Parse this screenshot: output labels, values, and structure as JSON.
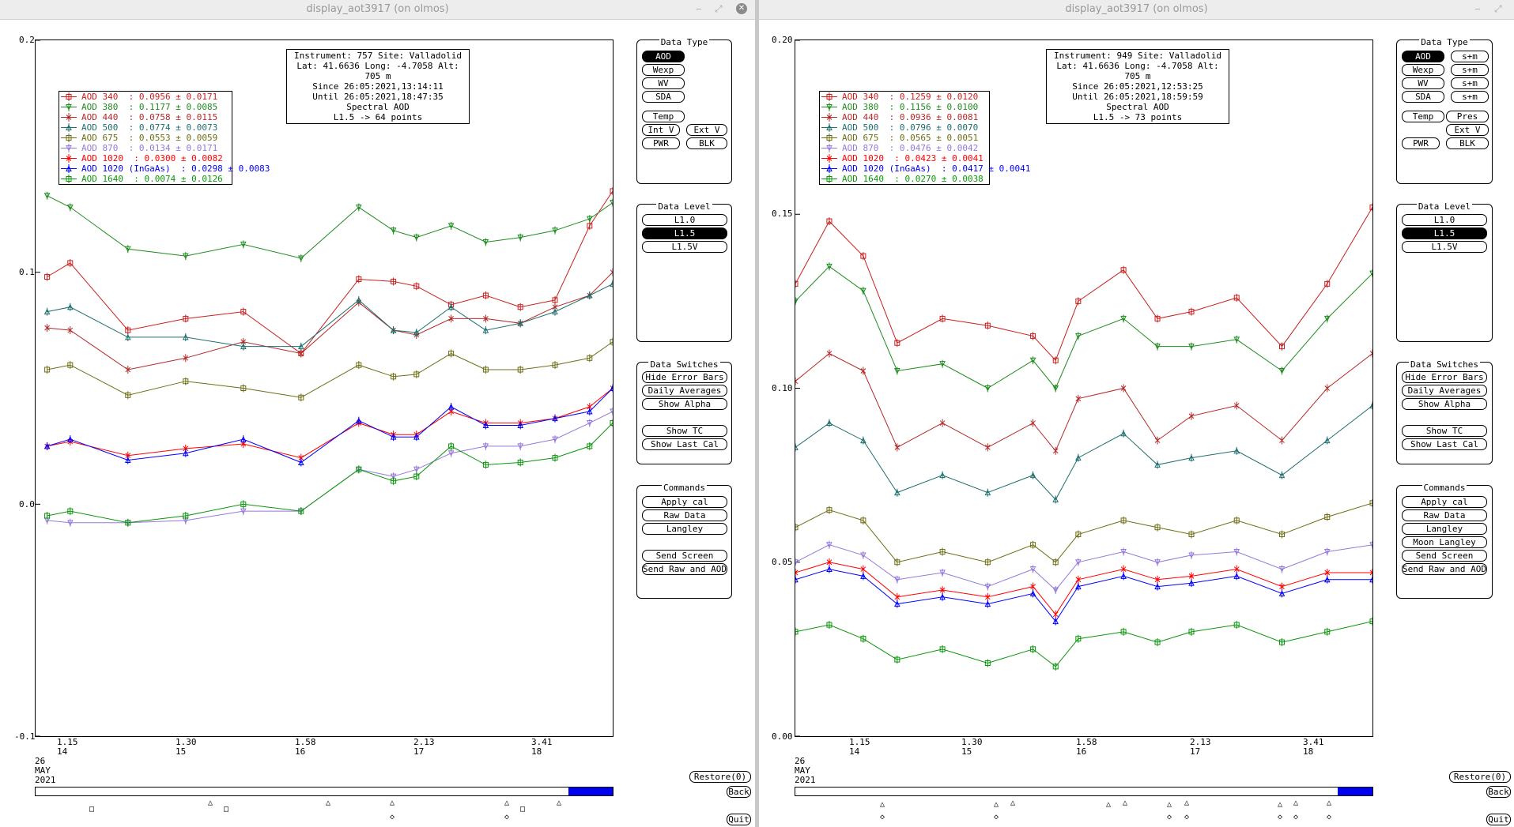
{
  "left": {
    "title": "display_aot3917 (on olmos)",
    "y_ticks": [
      "0.2",
      "0.1",
      "0.0",
      "-0.1"
    ],
    "info": [
      "Instrument: 757 Site: Valladolid",
      "Lat: 41.6636 Long: -4.7058 Alt: 705 m",
      "Since 26:05:2021,13:14:11",
      "Until 26:05:2021,18:47:35",
      "Spectral AOD",
      "L1.5 -> 64 points"
    ],
    "legend": [
      "AOD 340  : 0.0956 ± 0.0171",
      "AOD 380  : 0.1177 ± 0.0085",
      "AOD 440  : 0.0758 ± 0.0115",
      "AOD 500  : 0.0774 ± 0.0073",
      "AOD 675  : 0.0553 ± 0.0059",
      "AOD 870  : 0.0134 ± 0.0171",
      "AOD 1020  : 0.0300 ± 0.0082",
      "AOD 1020 (InGaAs)  : 0.0298 ± 0.0083",
      "AOD 1640  : 0.0074 ± 0.0126"
    ],
    "x_ticks": [
      [
        "1.15",
        "14"
      ],
      [
        "1.30",
        "15"
      ],
      [
        "1.58",
        "16"
      ],
      [
        "2.13",
        "17"
      ],
      [
        "3.41",
        "18"
      ]
    ],
    "date": [
      "26",
      "MAY",
      "2021"
    ],
    "data_type": {
      "title": "Data Type",
      "aod": "AOD",
      "wexp": "Wexp",
      "wv": "WV",
      "sda": "SDA",
      "temp": "Temp",
      "intv": "Int V",
      "extv": "Ext V",
      "pwr": "PWR",
      "blk": "BLK"
    },
    "data_level": {
      "title": "Data Level",
      "l10": "L1.0",
      "l15": "L1.5",
      "l15v": "L1.5V"
    },
    "switches": {
      "title": "Data Switches",
      "hide": "Hide Error Bars",
      "daily": "Daily Averages",
      "alpha": "Show Alpha",
      "tc": "Show TC",
      "lastcal": "Show Last Cal"
    },
    "commands": {
      "title": "Commands",
      "apply": "Apply cal",
      "raw": "Raw Data",
      "langley": "Langley",
      "send": "Send Screen",
      "sendraw": "Send Raw and AOD"
    },
    "restore": "Restore(0)",
    "back": "Back",
    "quit": "Quit"
  },
  "right": {
    "title": "display_aot3917 (on olmos)",
    "y_ticks": [
      "0.20",
      "0.15",
      "0.10",
      "0.05",
      "0.00"
    ],
    "info": [
      "Instrument: 949 Site: Valladolid",
      "Lat: 41.6636 Long: -4.7058 Alt: 705 m",
      "Since 26:05:2021,12:53:25",
      "Until 26:05:2021,18:59:59",
      "Spectral AOD",
      "L1.5 -> 73 points"
    ],
    "legend": [
      "AOD 340  : 0.1259 ± 0.0120",
      "AOD 380  : 0.1156 ± 0.0100",
      "AOD 440  : 0.0936 ± 0.0081",
      "AOD 500  : 0.0796 ± 0.0070",
      "AOD 675  : 0.0565 ± 0.0051",
      "AOD 870  : 0.0476 ± 0.0042",
      "AOD 1020  : 0.0423 ± 0.0041",
      "AOD 1020 (InGaAs)  : 0.0417 ± 0.0041",
      "AOD 1640  : 0.0270 ± 0.0038"
    ],
    "x_ticks": [
      [
        "1.15",
        "14"
      ],
      [
        "1.30",
        "15"
      ],
      [
        "1.58",
        "16"
      ],
      [
        "2.13",
        "17"
      ],
      [
        "3.41",
        "18"
      ]
    ],
    "date": [
      "26",
      "MAY",
      "2021"
    ],
    "data_type": {
      "title": "Data Type",
      "aod": "AOD",
      "spm": "s+m",
      "wexp": "Wexp",
      "wv": "WV",
      "sda": "SDA",
      "temp": "Temp",
      "pres": "Pres",
      "extv": "Ext V",
      "pwr": "PWR",
      "blk": "BLK"
    },
    "data_level": {
      "title": "Data Level",
      "l10": "L1.0",
      "l15": "L1.5",
      "l15v": "L1.5V"
    },
    "switches": {
      "title": "Data Switches",
      "hide": "Hide Error Bars",
      "daily": "Daily Averages",
      "alpha": "Show Alpha",
      "tc": "Show TC",
      "lastcal": "Show Last Cal"
    },
    "commands": {
      "title": "Commands",
      "apply": "Apply cal",
      "raw": "Raw Data",
      "langley": "Langley",
      "moon": "Moon Langley",
      "send": "Send Screen",
      "sendraw": "Send Raw and AOD"
    },
    "restore": "Restore(0)",
    "back": "Back",
    "quit": "Quit"
  },
  "colors": [
    "#c81e1e",
    "#1e8c1e",
    "#b42828",
    "#1e6e6e",
    "#6e6e14",
    "#9678dc",
    "#ff0000",
    "#0000ff",
    "#0a960a"
  ],
  "chart_data": [
    {
      "type": "line",
      "ylim": [
        -0.1,
        0.2
      ],
      "xlim": [
        13.7,
        18.7
      ],
      "series": [
        {
          "name": "AOD 340",
          "x": [
            13.8,
            14.0,
            14.5,
            15.0,
            15.5,
            16.0,
            16.5,
            16.8,
            17.0,
            17.3,
            17.6,
            17.9,
            18.2,
            18.5,
            18.7
          ],
          "y": [
            0.098,
            0.104,
            0.075,
            0.08,
            0.083,
            0.065,
            0.097,
            0.096,
            0.094,
            0.086,
            0.09,
            0.085,
            0.088,
            0.12,
            0.135
          ]
        },
        {
          "name": "AOD 380",
          "x": [
            13.8,
            14.0,
            14.5,
            15.0,
            15.5,
            16.0,
            16.5,
            16.8,
            17.0,
            17.3,
            17.6,
            17.9,
            18.2,
            18.5,
            18.7
          ],
          "y": [
            0.133,
            0.128,
            0.11,
            0.107,
            0.112,
            0.106,
            0.128,
            0.118,
            0.115,
            0.12,
            0.113,
            0.115,
            0.118,
            0.123,
            0.13
          ]
        },
        {
          "name": "AOD 440",
          "x": [
            13.8,
            14.0,
            14.5,
            15.0,
            15.5,
            16.0,
            16.5,
            16.8,
            17.0,
            17.3,
            17.6,
            17.9,
            18.2,
            18.5,
            18.7
          ],
          "y": [
            0.076,
            0.075,
            0.058,
            0.063,
            0.07,
            0.065,
            0.087,
            0.075,
            0.073,
            0.08,
            0.08,
            0.078,
            0.085,
            0.09,
            0.1
          ]
        },
        {
          "name": "AOD 500",
          "x": [
            13.8,
            14.0,
            14.5,
            15.0,
            15.5,
            16.0,
            16.5,
            16.8,
            17.0,
            17.3,
            17.6,
            17.9,
            18.2,
            18.5,
            18.7
          ],
          "y": [
            0.083,
            0.085,
            0.072,
            0.072,
            0.068,
            0.068,
            0.088,
            0.075,
            0.074,
            0.085,
            0.075,
            0.078,
            0.083,
            0.09,
            0.095
          ]
        },
        {
          "name": "AOD 675",
          "x": [
            13.8,
            14.0,
            14.5,
            15.0,
            15.5,
            16.0,
            16.5,
            16.8,
            17.0,
            17.3,
            17.6,
            17.9,
            18.2,
            18.5,
            18.7
          ],
          "y": [
            0.058,
            0.06,
            0.047,
            0.053,
            0.05,
            0.046,
            0.06,
            0.055,
            0.056,
            0.065,
            0.058,
            0.058,
            0.06,
            0.063,
            0.07
          ]
        },
        {
          "name": "AOD 870",
          "x": [
            13.8,
            14.0,
            14.5,
            15.0,
            15.5,
            16.0,
            16.5,
            16.8,
            17.0,
            17.3,
            17.6,
            17.9,
            18.2,
            18.5,
            18.7
          ],
          "y": [
            -0.007,
            -0.008,
            -0.008,
            -0.007,
            -0.003,
            -0.003,
            0.015,
            0.012,
            0.015,
            0.022,
            0.025,
            0.025,
            0.028,
            0.035,
            0.04
          ]
        },
        {
          "name": "AOD 1020",
          "x": [
            13.8,
            14.0,
            14.5,
            15.0,
            15.5,
            16.0,
            16.5,
            16.8,
            17.0,
            17.3,
            17.6,
            17.9,
            18.2,
            18.5,
            18.7
          ],
          "y": [
            0.025,
            0.027,
            0.021,
            0.024,
            0.026,
            0.02,
            0.035,
            0.03,
            0.03,
            0.04,
            0.035,
            0.035,
            0.037,
            0.042,
            0.05
          ]
        },
        {
          "name": "AOD 1020 (InGaAs)",
          "x": [
            13.8,
            14.0,
            14.5,
            15.0,
            15.5,
            16.0,
            16.5,
            16.8,
            17.0,
            17.3,
            17.6,
            17.9,
            18.2,
            18.5,
            18.7
          ],
          "y": [
            0.025,
            0.028,
            0.019,
            0.022,
            0.028,
            0.018,
            0.036,
            0.029,
            0.029,
            0.042,
            0.034,
            0.034,
            0.037,
            0.04,
            0.05
          ]
        },
        {
          "name": "AOD 1640",
          "x": [
            13.8,
            14.0,
            14.5,
            15.0,
            15.5,
            16.0,
            16.5,
            16.8,
            17.0,
            17.3,
            17.6,
            17.9,
            18.2,
            18.5,
            18.7
          ],
          "y": [
            -0.005,
            -0.003,
            -0.008,
            -0.005,
            0.0,
            -0.003,
            0.015,
            0.01,
            0.012,
            0.025,
            0.017,
            0.018,
            0.02,
            0.025,
            0.035
          ]
        }
      ]
    },
    {
      "type": "line",
      "ylim": [
        0.0,
        0.2
      ],
      "xlim": [
        13.7,
        18.8
      ],
      "series": [
        {
          "name": "AOD 340",
          "x": [
            13.7,
            14.0,
            14.3,
            14.6,
            15.0,
            15.4,
            15.8,
            16.0,
            16.2,
            16.6,
            16.9,
            17.2,
            17.6,
            18.0,
            18.4,
            18.8
          ],
          "y": [
            0.13,
            0.148,
            0.138,
            0.113,
            0.12,
            0.118,
            0.115,
            0.108,
            0.125,
            0.134,
            0.12,
            0.122,
            0.126,
            0.112,
            0.13,
            0.152
          ]
        },
        {
          "name": "AOD 380",
          "x": [
            13.7,
            14.0,
            14.3,
            14.6,
            15.0,
            15.4,
            15.8,
            16.0,
            16.2,
            16.6,
            16.9,
            17.2,
            17.6,
            18.0,
            18.4,
            18.8
          ],
          "y": [
            0.125,
            0.135,
            0.128,
            0.105,
            0.107,
            0.1,
            0.108,
            0.1,
            0.115,
            0.12,
            0.112,
            0.112,
            0.114,
            0.105,
            0.12,
            0.133
          ]
        },
        {
          "name": "AOD 440",
          "x": [
            13.7,
            14.0,
            14.3,
            14.6,
            15.0,
            15.4,
            15.8,
            16.0,
            16.2,
            16.6,
            16.9,
            17.2,
            17.6,
            18.0,
            18.4,
            18.8
          ],
          "y": [
            0.102,
            0.11,
            0.105,
            0.083,
            0.09,
            0.083,
            0.09,
            0.082,
            0.097,
            0.1,
            0.085,
            0.092,
            0.095,
            0.085,
            0.1,
            0.11
          ]
        },
        {
          "name": "AOD 500",
          "x": [
            13.7,
            14.0,
            14.3,
            14.6,
            15.0,
            15.4,
            15.8,
            16.0,
            16.2,
            16.6,
            16.9,
            17.2,
            17.6,
            18.0,
            18.4,
            18.8
          ],
          "y": [
            0.083,
            0.09,
            0.085,
            0.07,
            0.075,
            0.07,
            0.075,
            0.068,
            0.08,
            0.087,
            0.078,
            0.08,
            0.082,
            0.075,
            0.085,
            0.095
          ]
        },
        {
          "name": "AOD 675",
          "x": [
            13.7,
            14.0,
            14.3,
            14.6,
            15.0,
            15.4,
            15.8,
            16.0,
            16.2,
            16.6,
            16.9,
            17.2,
            17.6,
            18.0,
            18.4,
            18.8
          ],
          "y": [
            0.06,
            0.065,
            0.062,
            0.05,
            0.053,
            0.05,
            0.055,
            0.05,
            0.058,
            0.062,
            0.06,
            0.058,
            0.062,
            0.058,
            0.063,
            0.067
          ]
        },
        {
          "name": "AOD 870",
          "x": [
            13.7,
            14.0,
            14.3,
            14.6,
            15.0,
            15.4,
            15.8,
            16.0,
            16.2,
            16.6,
            16.9,
            17.2,
            17.6,
            18.0,
            18.4,
            18.8
          ],
          "y": [
            0.05,
            0.055,
            0.052,
            0.045,
            0.047,
            0.043,
            0.048,
            0.042,
            0.05,
            0.053,
            0.05,
            0.052,
            0.053,
            0.048,
            0.053,
            0.055
          ]
        },
        {
          "name": "AOD 1020",
          "x": [
            13.7,
            14.0,
            14.3,
            14.6,
            15.0,
            15.4,
            15.8,
            16.0,
            16.2,
            16.6,
            16.9,
            17.2,
            17.6,
            18.0,
            18.4,
            18.8
          ],
          "y": [
            0.047,
            0.05,
            0.048,
            0.04,
            0.042,
            0.04,
            0.043,
            0.035,
            0.045,
            0.048,
            0.045,
            0.046,
            0.048,
            0.043,
            0.047,
            0.047
          ]
        },
        {
          "name": "AOD 1020 (InGaAs)",
          "x": [
            13.7,
            14.0,
            14.3,
            14.6,
            15.0,
            15.4,
            15.8,
            16.0,
            16.2,
            16.6,
            16.9,
            17.2,
            17.6,
            18.0,
            18.4,
            18.8
          ],
          "y": [
            0.045,
            0.048,
            0.046,
            0.038,
            0.04,
            0.038,
            0.041,
            0.033,
            0.043,
            0.046,
            0.043,
            0.044,
            0.046,
            0.041,
            0.045,
            0.045
          ]
        },
        {
          "name": "AOD 1640",
          "x": [
            13.7,
            14.0,
            14.3,
            14.6,
            15.0,
            15.4,
            15.8,
            16.0,
            16.2,
            16.6,
            16.9,
            17.2,
            17.6,
            18.0,
            18.4,
            18.8
          ],
          "y": [
            0.03,
            0.032,
            0.028,
            0.022,
            0.025,
            0.021,
            0.025,
            0.02,
            0.028,
            0.03,
            0.027,
            0.03,
            0.032,
            0.027,
            0.03,
            0.033
          ]
        }
      ]
    }
  ]
}
